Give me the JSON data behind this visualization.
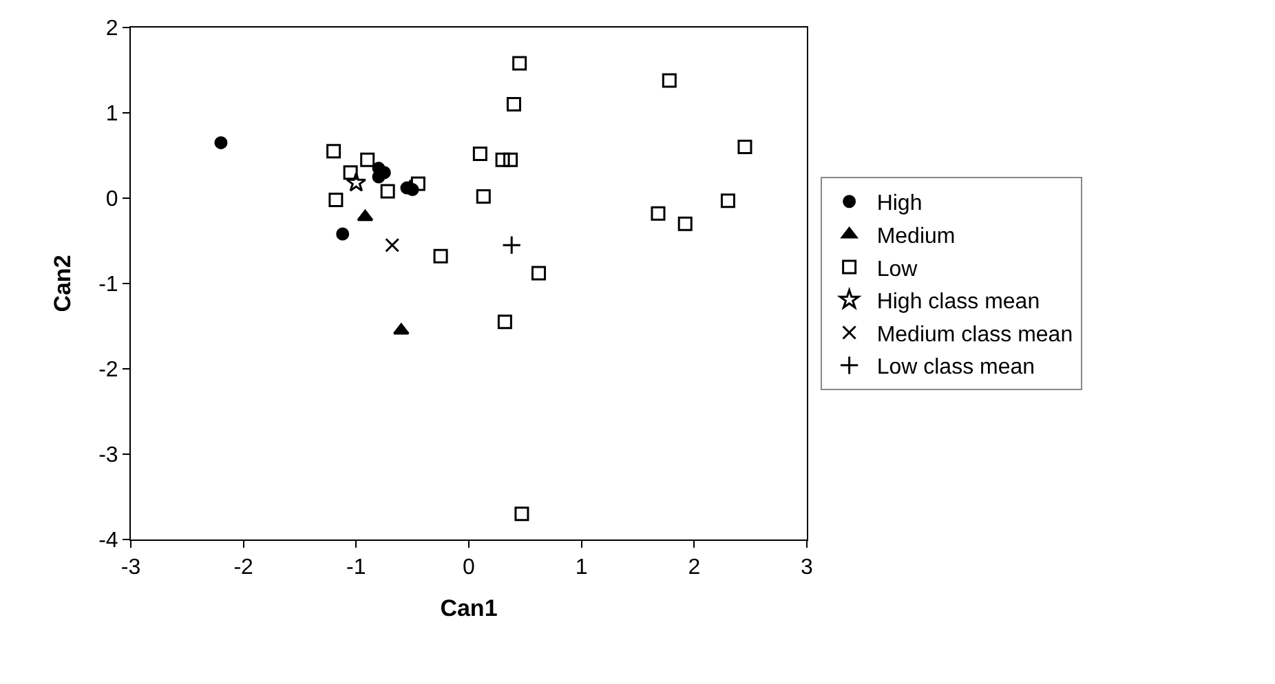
{
  "chart_data": {
    "type": "scatter",
    "xlabel": "Can1",
    "ylabel": "Can2",
    "xlim": [
      -3,
      3
    ],
    "xticks": [
      -3,
      -2,
      -1,
      0,
      1,
      2,
      3
    ],
    "ylim": [
      -4,
      2
    ],
    "yticks": [
      -4,
      -3,
      -2,
      -1,
      0,
      1,
      2
    ],
    "legend": "right",
    "series": [
      {
        "name": "High",
        "color": "#000000",
        "marker": "circle",
        "x": [
          -2.2,
          -1.12,
          -0.8,
          -0.75,
          -0.8,
          -0.55,
          -0.5
        ],
        "values": [
          0.65,
          -0.42,
          0.35,
          0.3,
          0.25,
          0.12,
          0.1
        ]
      },
      {
        "name": "Medium",
        "color": "#000000",
        "marker": "triangle",
        "x": [
          -0.92,
          -0.6,
          -0.52
        ],
        "values": [
          -0.22,
          -1.55,
          0.13
        ]
      },
      {
        "name": "Low",
        "color": "#000000",
        "marker": "square",
        "x": [
          -1.2,
          -1.18,
          -1.05,
          -0.9,
          -0.72,
          -0.45,
          0.1,
          0.13,
          -0.25,
          0.3,
          0.37,
          0.45,
          0.4,
          0.62,
          0.32,
          0.47,
          1.78,
          2.45,
          1.68,
          1.92,
          2.3
        ],
        "values": [
          0.55,
          -0.02,
          0.3,
          0.45,
          0.08,
          0.17,
          0.52,
          0.02,
          -0.68,
          0.45,
          0.45,
          1.58,
          1.1,
          -0.88,
          -1.45,
          -3.7,
          1.38,
          0.6,
          -0.18,
          -0.3,
          -0.03
        ]
      },
      {
        "name": "High class mean",
        "color": "#000000",
        "marker": "star",
        "x": [
          -1.0
        ],
        "values": [
          0.18
        ]
      },
      {
        "name": "Medium class mean",
        "color": "#000000",
        "marker": "cross",
        "x": [
          -0.68
        ],
        "values": [
          -0.55
        ]
      },
      {
        "name": "Low class mean",
        "color": "#000000",
        "marker": "plus",
        "x": [
          0.38
        ],
        "values": [
          -0.55
        ]
      }
    ]
  }
}
